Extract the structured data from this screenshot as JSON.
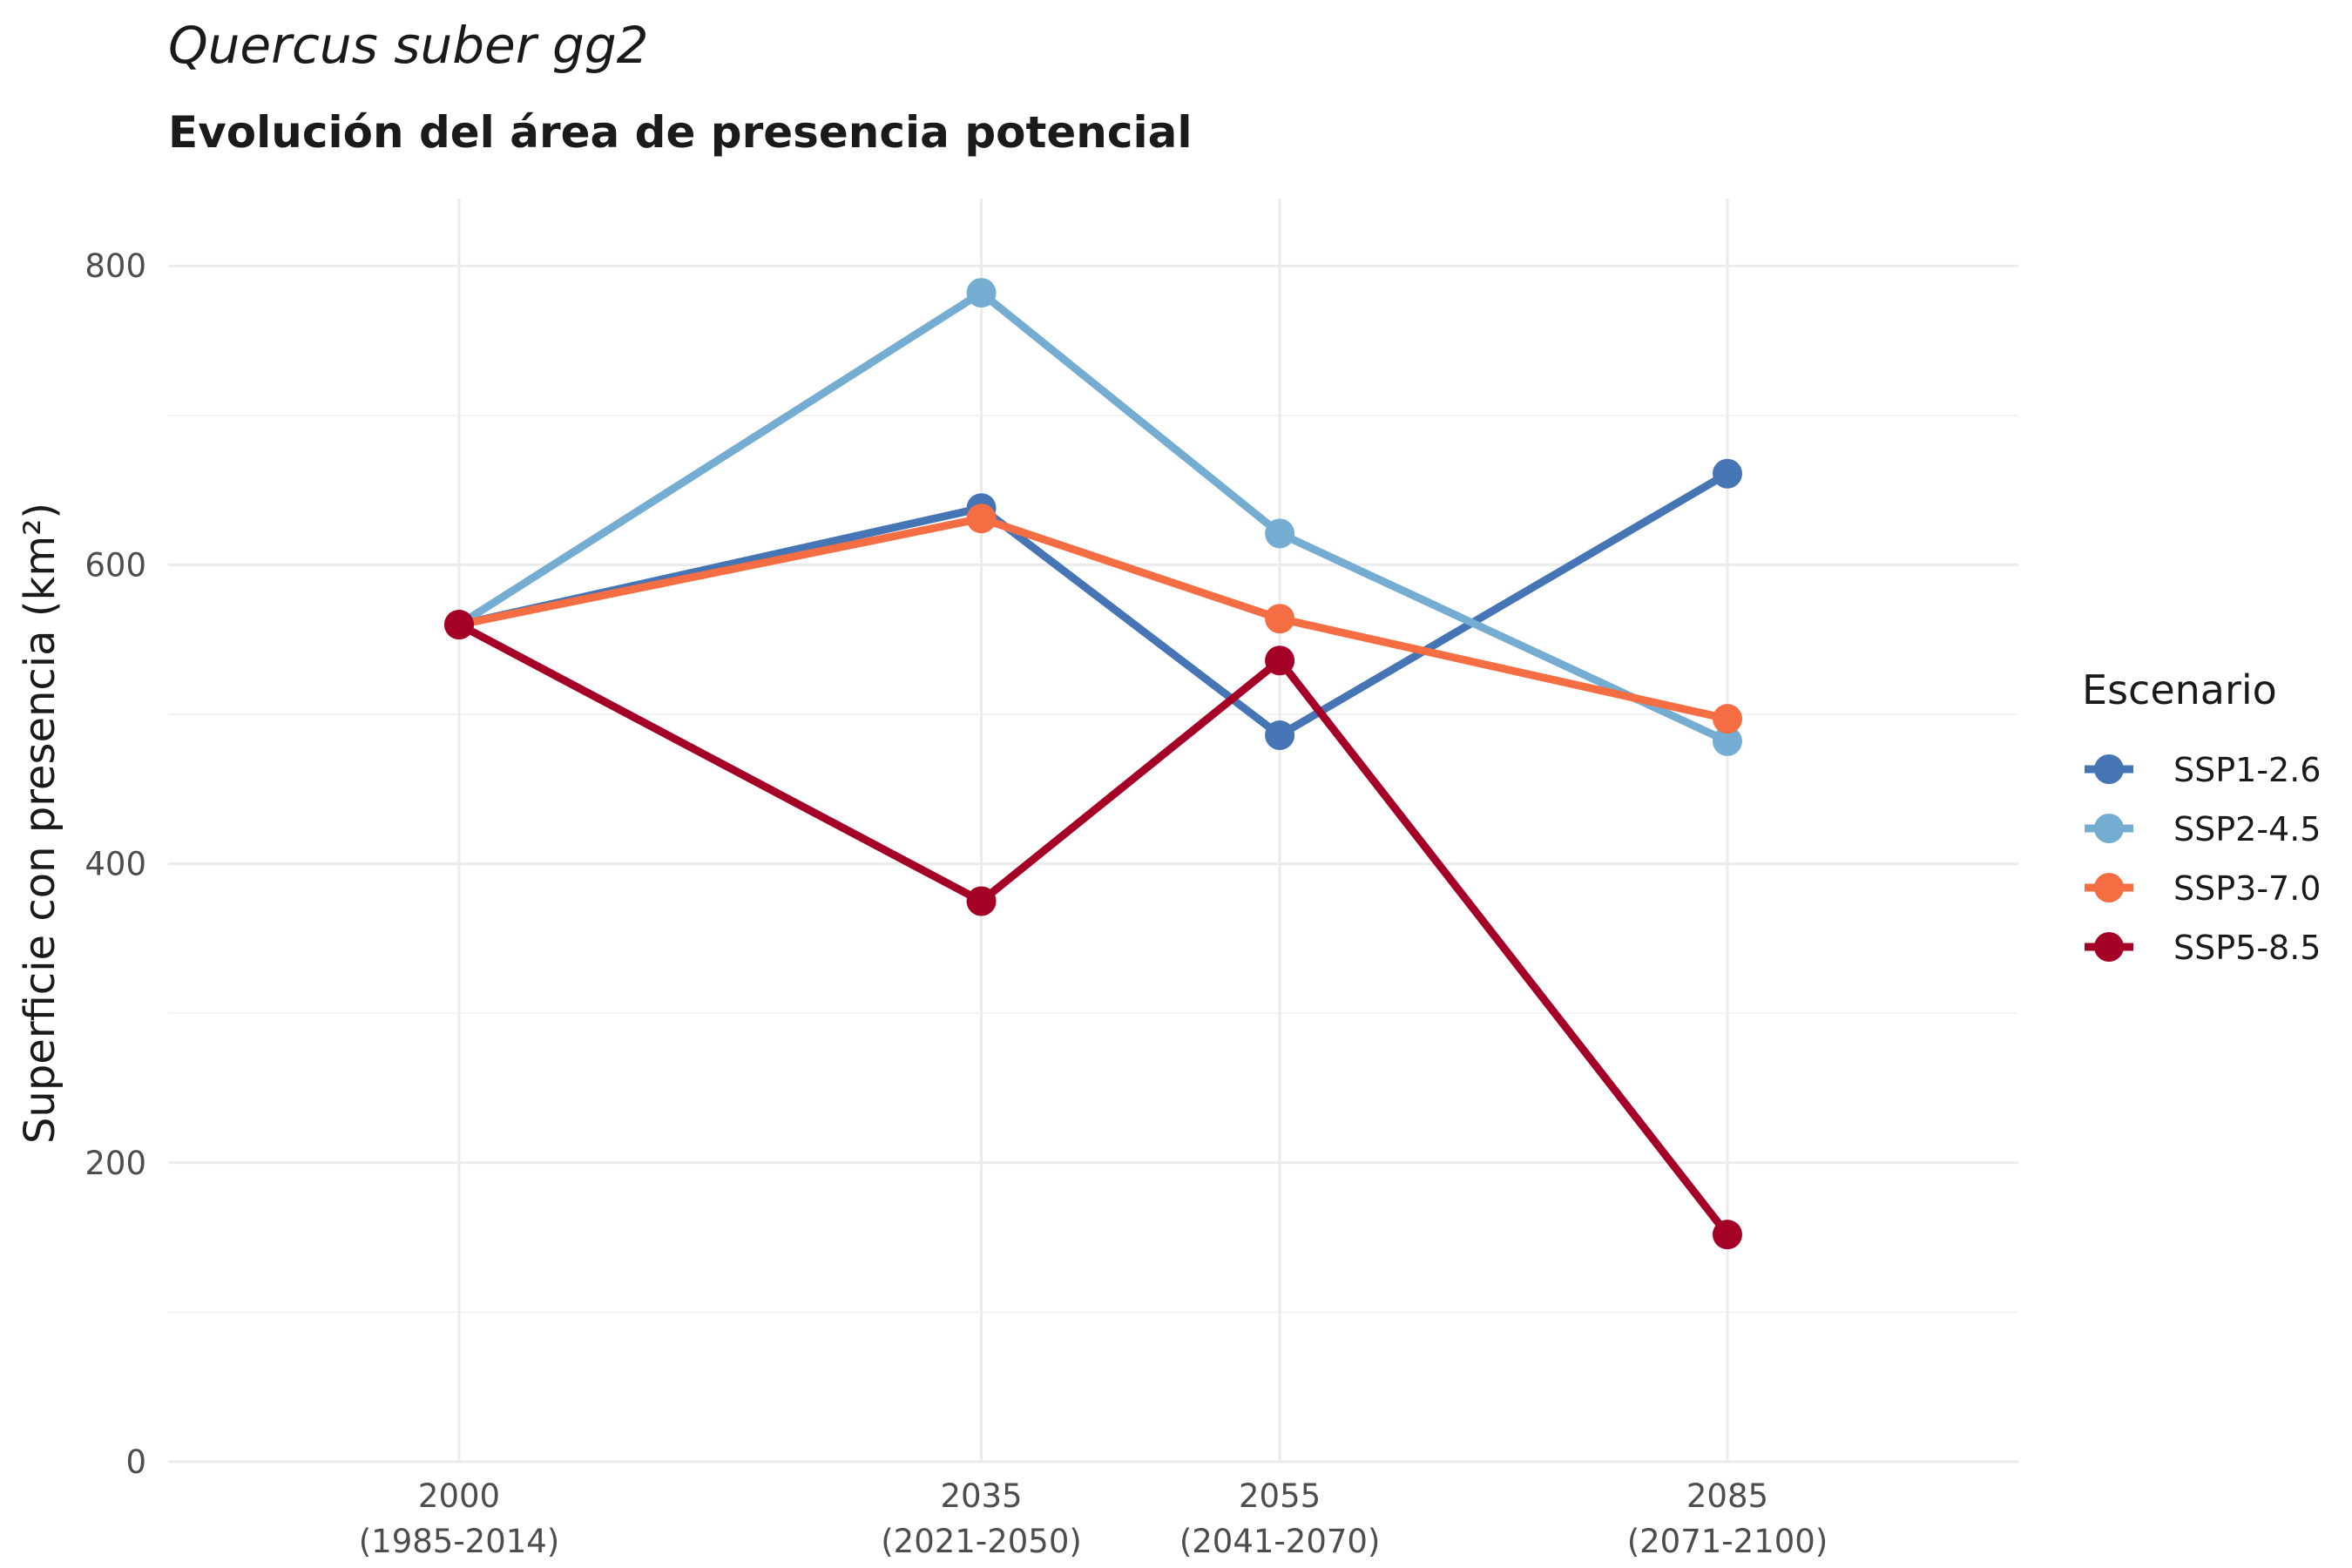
{
  "chart_data": {
    "type": "line",
    "title": "Quercus suber gg2",
    "subtitle": "Evolución del área de presencia potencial",
    "ylabel": "Superficie con presencia (km²)",
    "xlabel": "",
    "x": [
      2000,
      2035,
      2055,
      2085
    ],
    "x_tick_labels": [
      [
        "2000",
        "(1985-2014)"
      ],
      [
        "2035",
        "(2021-2050)"
      ],
      [
        "2055",
        "(2041-2070)"
      ],
      [
        "2085",
        "(2071-2100)"
      ]
    ],
    "y_ticks": [
      0,
      200,
      400,
      600,
      800
    ],
    "ylim": [
      0,
      845
    ],
    "xlim": [
      1980.5,
      2104.5
    ],
    "grid": true,
    "legend": {
      "title": "Escenario",
      "placement": "right"
    },
    "series": [
      {
        "name": "SSP1-2.6",
        "color": "#4575b4",
        "values": [
          560,
          638,
          486,
          661
        ]
      },
      {
        "name": "SSP2-4.5",
        "color": "#74add1",
        "values": [
          560,
          782,
          621,
          482
        ]
      },
      {
        "name": "SSP3-7.0",
        "color": "#f46d43",
        "values": [
          560,
          631,
          564,
          497
        ]
      },
      {
        "name": "SSP5-8.5",
        "color": "#a50026",
        "values": [
          560,
          375,
          536,
          152
        ]
      }
    ]
  }
}
